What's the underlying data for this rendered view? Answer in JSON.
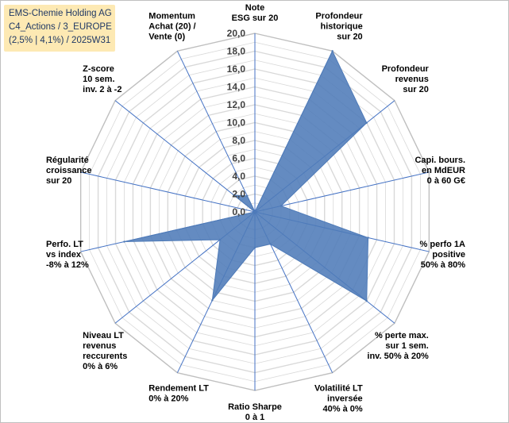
{
  "title_box": {
    "line1": "EMS-Chemie Holding AG",
    "line2": "C4_Actions / 3_EUROPE",
    "line3": "(2,5% | 4,1%) / 2025W31"
  },
  "chart_data": {
    "type": "radar",
    "rmin": 0,
    "rmax": 20,
    "ticks": [
      "0,0",
      "2,0",
      "4,0",
      "6,0",
      "8,0",
      "10,0",
      "12,0",
      "14,0",
      "16,0",
      "18,0",
      "20,0"
    ],
    "grid": true,
    "colors": {
      "fill": "#4f7bb8",
      "stroke": "#4f7bb8",
      "grid": "#d9d9d9",
      "axis": "#4472c4"
    },
    "axes": [
      {
        "lines": [
          "Note",
          "ESG sur 20"
        ],
        "value": 0
      },
      {
        "lines": [
          "Profondeur",
          "historique",
          "sur 20"
        ],
        "value": 20
      },
      {
        "lines": [
          "Profondeur",
          "revenus",
          "sur 20"
        ],
        "value": 16
      },
      {
        "lines": [
          "Capi. bours.",
          "en MdEUR",
          "0 à 60 G€"
        ],
        "value": 3
      },
      {
        "lines": [
          "% perfo 1A",
          "positive",
          "50% à 80%"
        ],
        "value": 13
      },
      {
        "lines": [
          "% perte max.",
          "sur 1 sem.",
          "inv. 50% à 20%"
        ],
        "value": 16
      },
      {
        "lines": [
          "Volatilité LT",
          "inversée",
          "40% à 0%"
        ],
        "value": 4
      },
      {
        "lines": [
          "Ratio Sharpe",
          "0 à 1"
        ],
        "value": 4
      },
      {
        "lines": [
          "Rendement LT",
          "0% à 20%"
        ],
        "value": 11
      },
      {
        "lines": [
          "Niveau LT",
          "revenus",
          "reccurents",
          "0% à 6%"
        ],
        "value": 5
      },
      {
        "lines": [
          "Perfo. LT",
          "vs index",
          "-8% à 12%"
        ],
        "value": 15
      },
      {
        "lines": [
          "Régularité",
          "croissance",
          "sur 20"
        ],
        "value": 0
      },
      {
        "lines": [
          "Z-score",
          "10 sem.",
          "inv. 2 à -2"
        ],
        "value": 3
      },
      {
        "lines": [
          "Momentum",
          "Achat (20) /",
          "Vente (0)"
        ],
        "value": 2
      }
    ]
  }
}
